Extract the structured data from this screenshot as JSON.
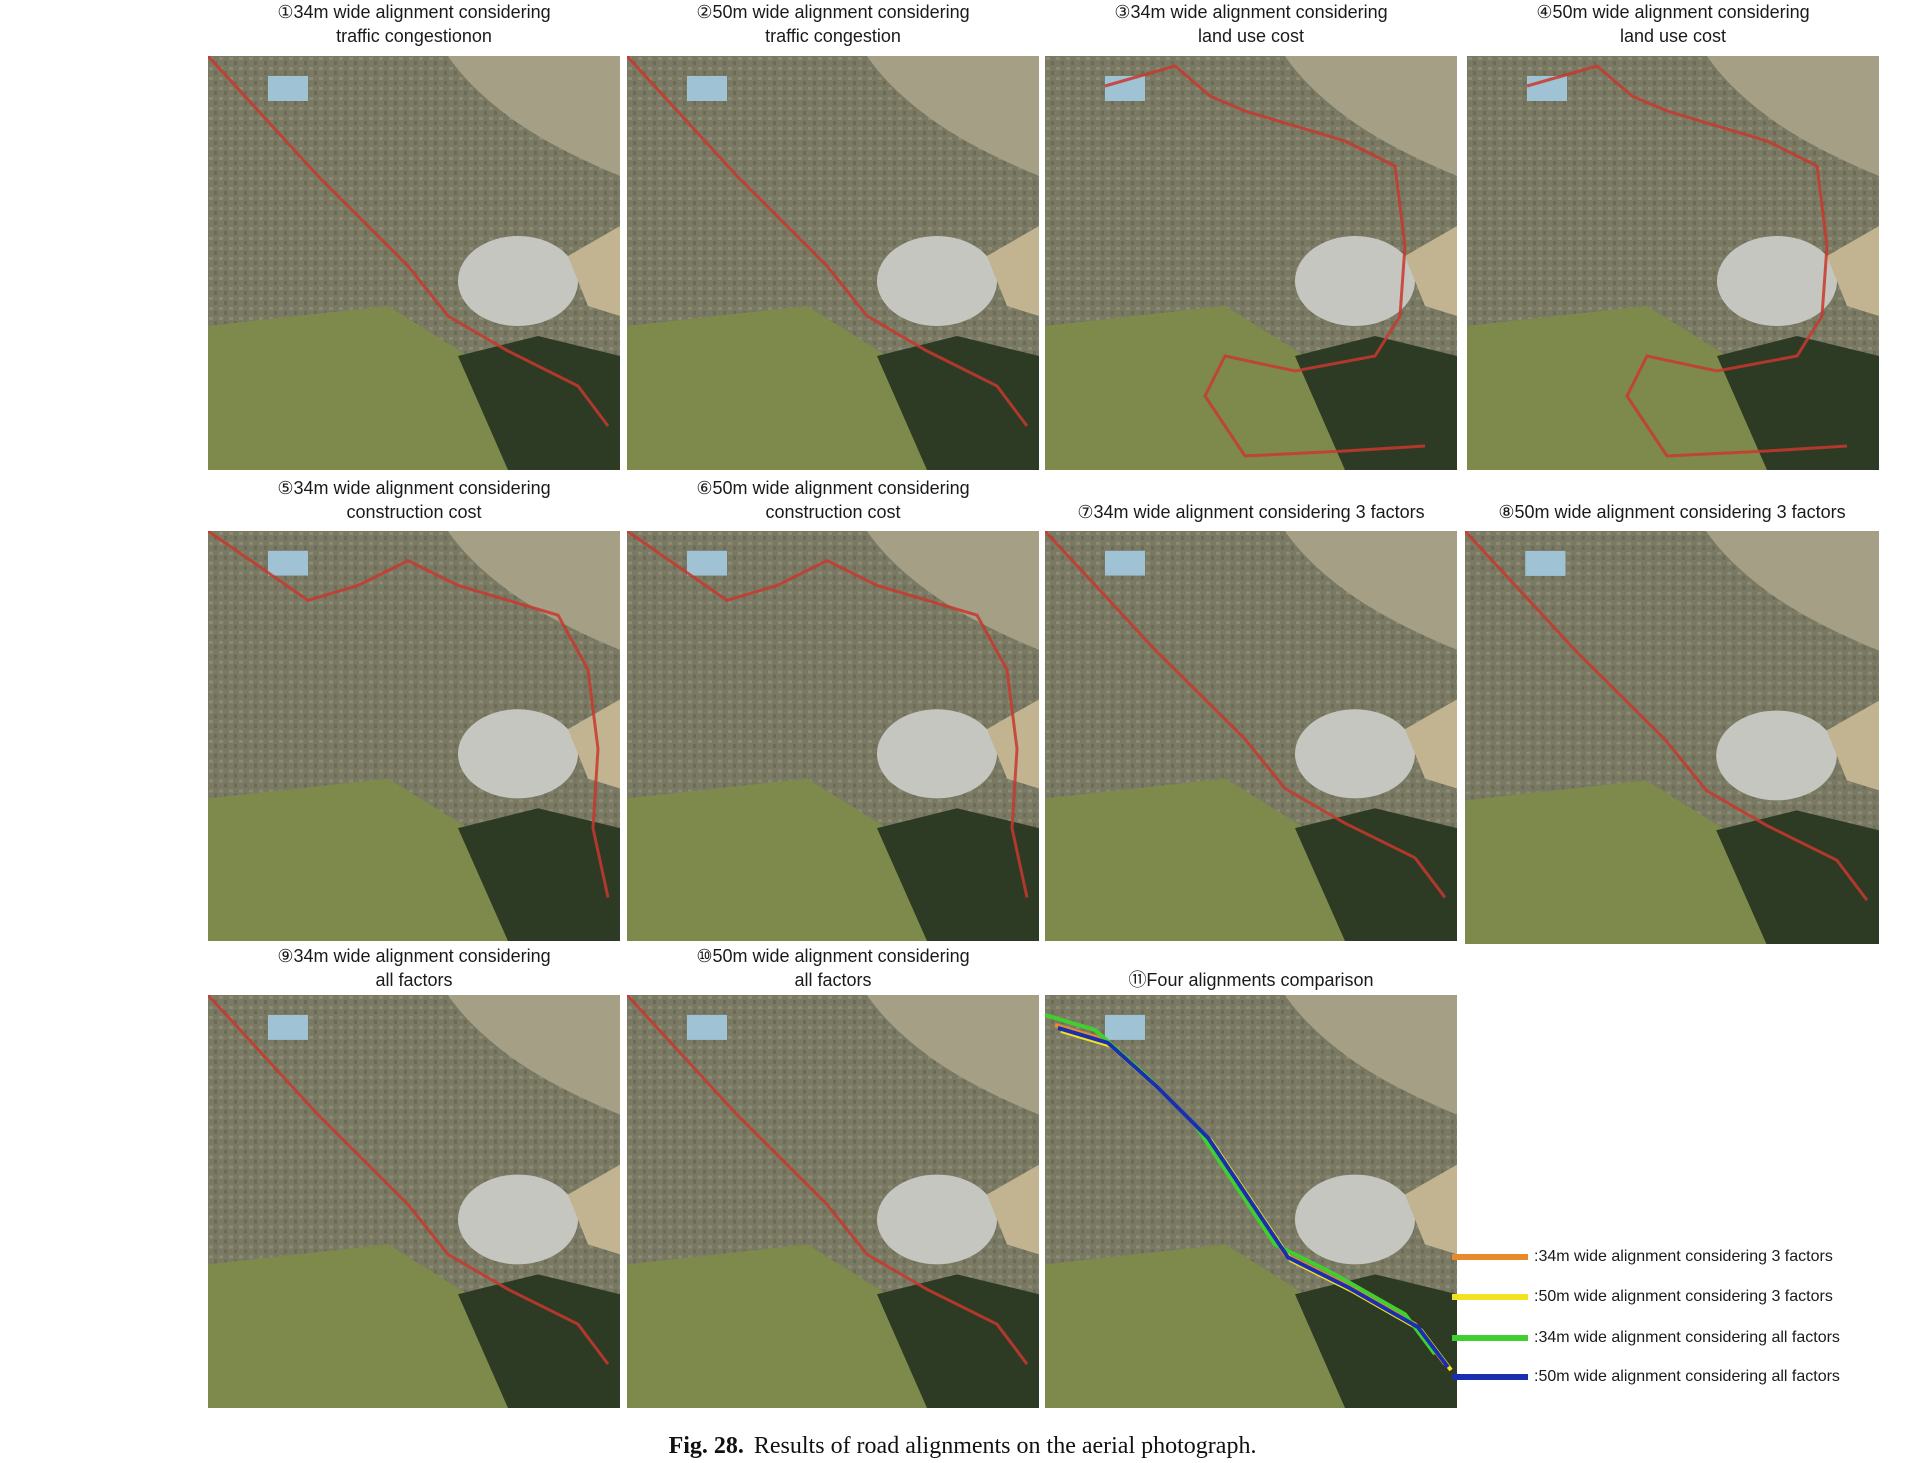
{
  "panels": [
    {
      "title": "①34m wide alignment considering\ntraffic congestionon",
      "route": "diag"
    },
    {
      "title": "②50m wide alignment considering\ntraffic congestion",
      "route": "diag"
    },
    {
      "title": "③34m wide alignment considering\nland use cost",
      "route": "east"
    },
    {
      "title": "④50m wide alignment considering\nland use cost",
      "route": "east"
    },
    {
      "title": "⑤34m wide alignment considering\nconstruction cost",
      "route": "coast"
    },
    {
      "title": "⑥50m wide alignment considering\nconstruction cost",
      "route": "coast"
    },
    {
      "title": "⑦34m wide alignment considering 3 factors",
      "route": "diag"
    },
    {
      "title": "⑧50m wide alignment considering 3 factors",
      "route": "diag"
    },
    {
      "title": "⑨34m wide alignment considering\nall factors",
      "route": "diag"
    },
    {
      "title": "⑩50m wide alignment considering\nall factors",
      "route": "diag"
    },
    {
      "title": "⑪Four alignments comparison",
      "route": "compare"
    }
  ],
  "legend": [
    {
      "label": ":34m wide alignment considering 3 factors",
      "color": "#e8892b"
    },
    {
      "label": ":50m wide alignment considering 3 factors",
      "color": "#f2e21f"
    },
    {
      "label": ":34m wide alignment considering all factors",
      "color": "#3fcf2e"
    },
    {
      "label": ":50m wide alignment considering all factors",
      "color": "#1a2fb0"
    }
  ],
  "caption": {
    "label": "Fig. 28.",
    "text": "Results of road alignments on the aerial photograph."
  },
  "colors": {
    "route": "#c8382e"
  }
}
